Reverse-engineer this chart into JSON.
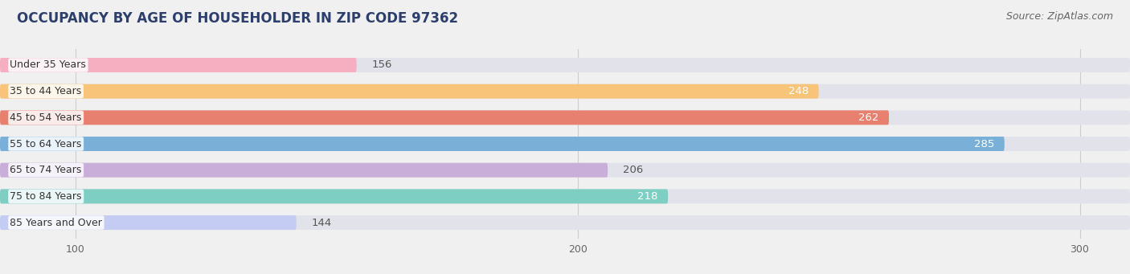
{
  "title": "OCCUPANCY BY AGE OF HOUSEHOLDER IN ZIP CODE 97362",
  "source": "Source: ZipAtlas.com",
  "categories": [
    "Under 35 Years",
    "35 to 44 Years",
    "45 to 54 Years",
    "55 to 64 Years",
    "65 to 74 Years",
    "75 to 84 Years",
    "85 Years and Over"
  ],
  "values": [
    156,
    248,
    262,
    285,
    206,
    218,
    144
  ],
  "bar_colors": [
    "#f5afc0",
    "#f7c47a",
    "#e88070",
    "#7ab0d8",
    "#c8aed8",
    "#7ecec4",
    "#c4ccf4"
  ],
  "value_colors": [
    "#666666",
    "#ffffff",
    "#ffffff",
    "#ffffff",
    "#666666",
    "#ffffff",
    "#666666"
  ],
  "xmin": 85,
  "xmax": 310,
  "xticks": [
    100,
    200,
    300
  ],
  "title_fontsize": 12,
  "source_fontsize": 9,
  "label_fontsize": 9,
  "value_fontsize": 9.5,
  "bar_height": 0.55,
  "background_color": "#f0f0f0",
  "bar_bg_color": "#e2e2ea"
}
